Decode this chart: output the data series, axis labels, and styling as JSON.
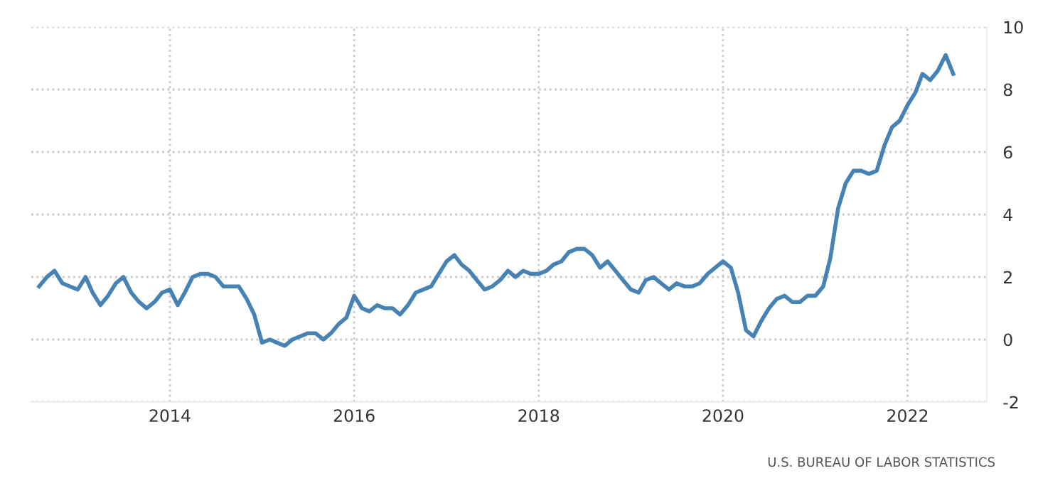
{
  "chart_data": {
    "type": "line",
    "x": [
      "2012-08",
      "2012-09",
      "2012-10",
      "2012-11",
      "2012-12",
      "2013-01",
      "2013-02",
      "2013-03",
      "2013-04",
      "2013-05",
      "2013-06",
      "2013-07",
      "2013-08",
      "2013-09",
      "2013-10",
      "2013-11",
      "2013-12",
      "2014-01",
      "2014-02",
      "2014-03",
      "2014-04",
      "2014-05",
      "2014-06",
      "2014-07",
      "2014-08",
      "2014-09",
      "2014-10",
      "2014-11",
      "2014-12",
      "2015-01",
      "2015-02",
      "2015-03",
      "2015-04",
      "2015-05",
      "2015-06",
      "2015-07",
      "2015-08",
      "2015-09",
      "2015-10",
      "2015-11",
      "2015-12",
      "2016-01",
      "2016-02",
      "2016-03",
      "2016-04",
      "2016-05",
      "2016-06",
      "2016-07",
      "2016-08",
      "2016-09",
      "2016-10",
      "2016-11",
      "2016-12",
      "2017-01",
      "2017-02",
      "2017-03",
      "2017-04",
      "2017-05",
      "2017-06",
      "2017-07",
      "2017-08",
      "2017-09",
      "2017-10",
      "2017-11",
      "2017-12",
      "2018-01",
      "2018-02",
      "2018-03",
      "2018-04",
      "2018-05",
      "2018-06",
      "2018-07",
      "2018-08",
      "2018-09",
      "2018-10",
      "2018-11",
      "2018-12",
      "2019-01",
      "2019-02",
      "2019-03",
      "2019-04",
      "2019-05",
      "2019-06",
      "2019-07",
      "2019-08",
      "2019-09",
      "2019-10",
      "2019-11",
      "2019-12",
      "2020-01",
      "2020-02",
      "2020-03",
      "2020-04",
      "2020-05",
      "2020-06",
      "2020-07",
      "2020-08",
      "2020-09",
      "2020-10",
      "2020-11",
      "2020-12",
      "2021-01",
      "2021-02",
      "2021-03",
      "2021-04",
      "2021-05",
      "2021-06",
      "2021-07",
      "2021-08",
      "2021-09",
      "2021-10",
      "2021-11",
      "2021-12",
      "2022-01",
      "2022-02",
      "2022-03",
      "2022-04",
      "2022-05",
      "2022-06",
      "2022-07"
    ],
    "series": [
      {
        "color": "#4682b4",
        "values": [
          1.7,
          2.0,
          2.2,
          1.8,
          1.7,
          1.6,
          2.0,
          1.5,
          1.1,
          1.4,
          1.8,
          2.0,
          1.5,
          1.2,
          1.0,
          1.2,
          1.5,
          1.6,
          1.1,
          1.5,
          2.0,
          2.1,
          2.1,
          2.0,
          1.7,
          1.7,
          1.7,
          1.3,
          0.8,
          -0.1,
          0.0,
          -0.1,
          -0.2,
          0.0,
          0.1,
          0.2,
          0.2,
          0.0,
          0.2,
          0.5,
          0.7,
          1.4,
          1.0,
          0.9,
          1.1,
          1.0,
          1.0,
          0.8,
          1.1,
          1.5,
          1.6,
          1.7,
          2.1,
          2.5,
          2.7,
          2.4,
          2.2,
          1.9,
          1.6,
          1.7,
          1.9,
          2.2,
          2.0,
          2.2,
          2.1,
          2.1,
          2.2,
          2.4,
          2.5,
          2.8,
          2.9,
          2.9,
          2.7,
          2.3,
          2.5,
          2.2,
          1.9,
          1.6,
          1.5,
          1.9,
          2.0,
          1.8,
          1.6,
          1.8,
          1.7,
          1.7,
          1.8,
          2.1,
          2.3,
          2.5,
          2.3,
          1.5,
          0.3,
          0.1,
          0.6,
          1.0,
          1.3,
          1.4,
          1.2,
          1.2,
          1.4,
          1.4,
          1.7,
          2.6,
          4.2,
          5.0,
          5.4,
          5.4,
          5.3,
          5.4,
          6.2,
          6.8,
          7.0,
          7.5,
          7.9,
          8.5,
          8.3,
          8.6,
          9.1,
          8.5
        ]
      }
    ],
    "xlim": [
      "2012-07",
      "2022-11-25"
    ],
    "xticks": [
      {
        "value": "2014-01",
        "label": "2014"
      },
      {
        "value": "2016-01",
        "label": "2016"
      },
      {
        "value": "2018-01",
        "label": "2018"
      },
      {
        "value": "2020-01",
        "label": "2020"
      },
      {
        "value": "2022-01",
        "label": "2022"
      }
    ],
    "ylim": [
      -2,
      10
    ],
    "yticks": [
      -2,
      0,
      2,
      4,
      6,
      8,
      10
    ],
    "grid": true,
    "line_style": "solid",
    "marker": "none",
    "annotations": [
      "U.S. BUREAU OF LABOR STATISTICS"
    ]
  }
}
